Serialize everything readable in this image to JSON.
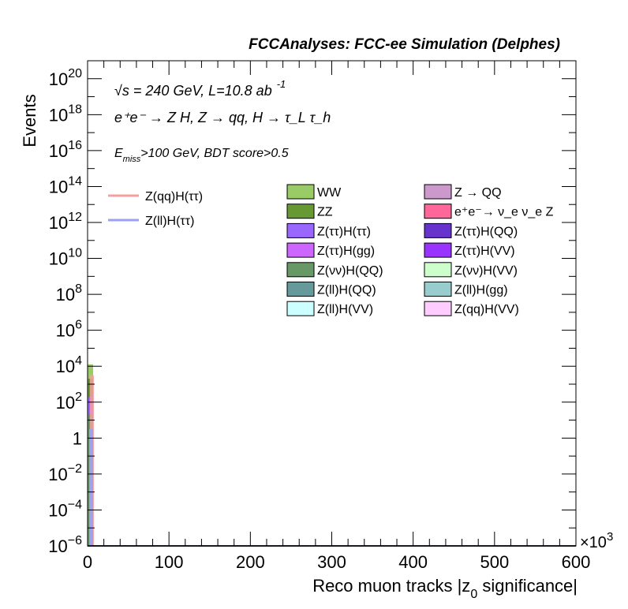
{
  "chart_data": {
    "type": "bar",
    "title": "FCCAnalyses: FCC-ee Simulation (Delphes)",
    "xlabel": "Reco muon tracks |z",
    "xlabel_sub": "0",
    "xlabel_end": " significance|",
    "ylabel": "Events",
    "xlim": [
      0,
      600
    ],
    "x_multiplier": "×10",
    "x_multiplier_exp": "3",
    "ylim_log10": [
      -6,
      21
    ],
    "y_scale": "log",
    "x_ticks": [
      "0",
      "100",
      "200",
      "300",
      "400",
      "500",
      "600"
    ],
    "y_ticks": [
      {
        "exp": -6,
        "base": "10",
        "sup": "−6"
      },
      {
        "exp": -4,
        "base": "10",
        "sup": "−4"
      },
      {
        "exp": -2,
        "base": "10",
        "sup": "−2"
      },
      {
        "exp": 0,
        "base": "1",
        "sup": ""
      },
      {
        "exp": 2,
        "base": "10",
        "sup": "2"
      },
      {
        "exp": 4,
        "base": "10",
        "sup": "4"
      },
      {
        "exp": 6,
        "base": "10",
        "sup": "6"
      },
      {
        "exp": 8,
        "base": "10",
        "sup": "8"
      },
      {
        "exp": 10,
        "base": "10",
        "sup": "10"
      },
      {
        "exp": 12,
        "base": "10",
        "sup": "12"
      },
      {
        "exp": 14,
        "base": "10",
        "sup": "14"
      },
      {
        "exp": 16,
        "base": "10",
        "sup": "16"
      },
      {
        "exp": 18,
        "base": "10",
        "sup": "18"
      },
      {
        "exp": 20,
        "base": "10",
        "sup": "20"
      }
    ],
    "annotations": {
      "line1_sqrt": "√s",
      "line1_rest": " = 240 GeV, L=10.8 ab",
      "line1_sup": "-1",
      "line2": "e⁺e⁻ → Z H, Z → qq, H → τ_L τ_h",
      "line3_E": "E",
      "line3_sub": "miss",
      "line3_rest": ">100 GeV, BDT score>0.5"
    },
    "signal_legend": [
      {
        "name": "Z(qq)H(ττ)",
        "color": "#f4a0a0"
      },
      {
        "name": "Z(ll)H(ττ)",
        "color": "#9aa0f4"
      }
    ],
    "background_legend": [
      {
        "name": "WW",
        "color": "#99cc66"
      },
      {
        "name": "Z → QQ",
        "color": "#cc99cc"
      },
      {
        "name": "ZZ",
        "color": "#669933"
      },
      {
        "name": "e⁺e⁻→ ν_e ν_e Z",
        "color": "#ff6699"
      },
      {
        "name": "Z(ττ)H(ττ)",
        "color": "#9966ff"
      },
      {
        "name": "Z(ττ)H(QQ)",
        "color": "#6633cc"
      },
      {
        "name": "Z(ττ)H(gg)",
        "color": "#cc66ff"
      },
      {
        "name": "Z(ττ)H(VV)",
        "color": "#9933ff"
      },
      {
        "name": "Z(νν)H(QQ)",
        "color": "#669966"
      },
      {
        "name": "Z(νν)H(VV)",
        "color": "#ccffcc"
      },
      {
        "name": "Z(ll)H(QQ)",
        "color": "#669999"
      },
      {
        "name": "Z(ll)H(gg)",
        "color": "#99cccc"
      },
      {
        "name": "Z(ll)H(VV)",
        "color": "#ccffff"
      },
      {
        "name": "Z(qq)H(VV)",
        "color": "#ffccff"
      }
    ],
    "stack_bin_x": [
      0,
      1
    ],
    "stack": [
      {
        "name": "Z(ll)H(VV)",
        "top_log10": -6,
        "color": "#ccffff"
      },
      {
        "name": "Z(νν)H(QQ)",
        "top_log10": 1.3,
        "color": "#669966"
      },
      {
        "name": "Z(ττ)H(ττ)",
        "top_log10": 2.3,
        "color": "#9966ff"
      },
      {
        "name": "ZZ",
        "top_log10": 3.3,
        "color": "#669933"
      },
      {
        "name": "WW",
        "top_log10": 4.1,
        "color": "#99cc66"
      }
    ],
    "signal_lines": [
      {
        "name": "Z(qq)H(ττ)",
        "bin_x": [
          1,
          2
        ],
        "top_log10": 3.5,
        "color": "#f4a0a0"
      },
      {
        "name": "Z(ll)H(ττ)",
        "bin_x": [
          0,
          1
        ],
        "top_log10": 0.5,
        "color": "#9aa0f4"
      }
    ]
  }
}
